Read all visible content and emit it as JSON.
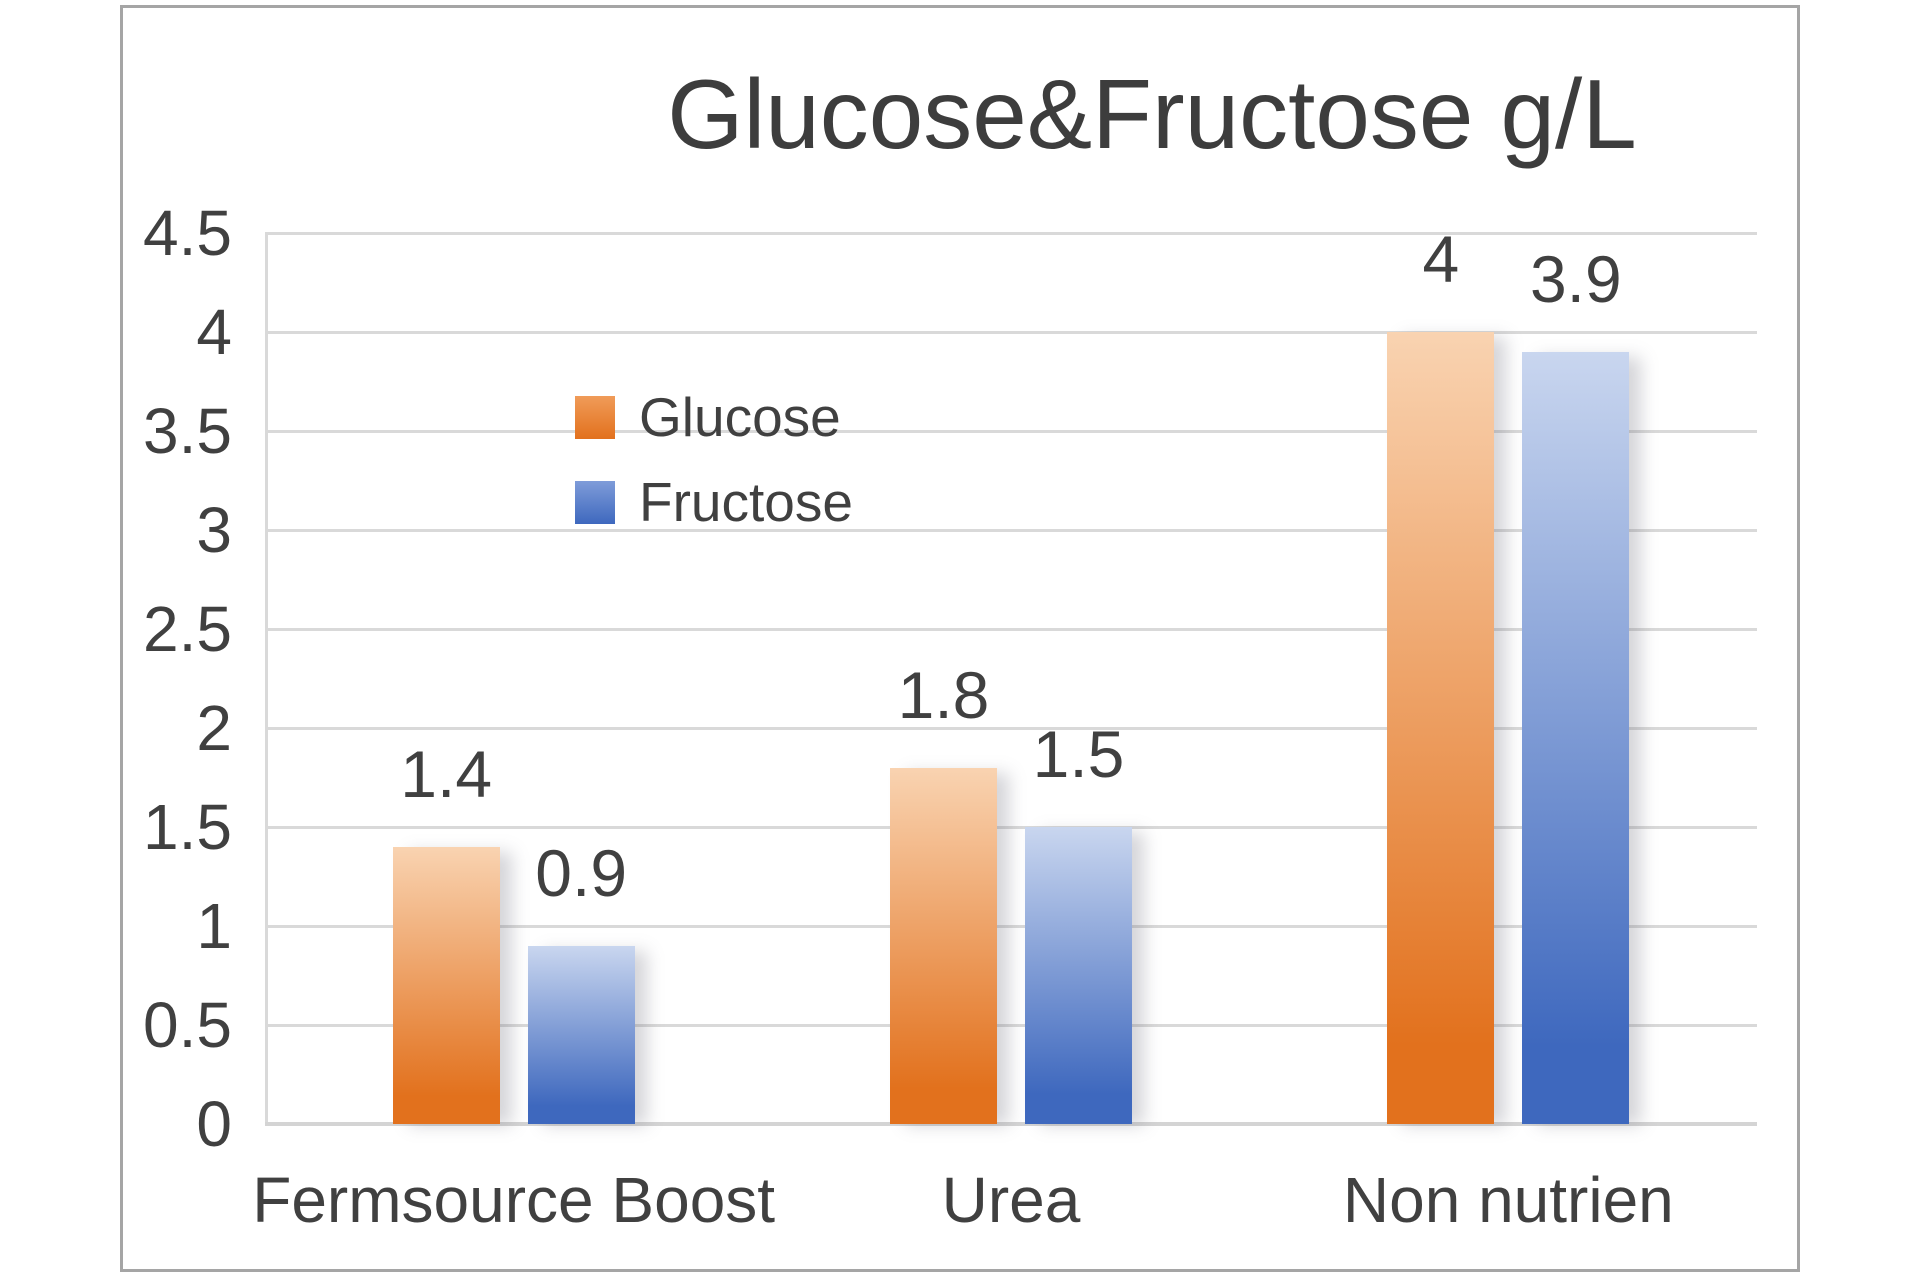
{
  "page": {
    "background": "#ffffff"
  },
  "chart_data": {
    "type": "bar",
    "title": "Glucose&Fructose g/L",
    "categories": [
      "Fermsource Boost",
      "Urea",
      "Non nutrien"
    ],
    "series": [
      {
        "name": "Glucose",
        "values": [
          1.4,
          1.8,
          4
        ],
        "labels": [
          "1.4",
          "1.8",
          "4"
        ],
        "color": "#e2711d",
        "color_top": "#f9d3b1",
        "legend_swatch_top": "#f09c59"
      },
      {
        "name": "Fructose",
        "values": [
          0.9,
          1.5,
          3.9
        ],
        "labels": [
          "0.9",
          "1.5",
          "3.9"
        ],
        "color": "#3e68be",
        "color_top": "#c9d6ef",
        "legend_swatch_top": "#7f9cd9"
      }
    ],
    "xlabel": "",
    "ylabel": "",
    "ylim": [
      0,
      4.5
    ],
    "y_tick_step": 0.5,
    "y_ticks": [
      "4.5",
      "4",
      "3.5",
      "3",
      "2.5",
      "2",
      "1.5",
      "1",
      "0.5",
      "0"
    ],
    "grid": true,
    "legend_position": "inside-left-vertical",
    "data_labels_position": "outside-end"
  },
  "colors": {
    "text": "#404040",
    "title_text": "#3d3d3d",
    "gridline": "#d9d9d9",
    "axis_line": "#d4d4d4",
    "chart_border": "#a5a5a5"
  }
}
